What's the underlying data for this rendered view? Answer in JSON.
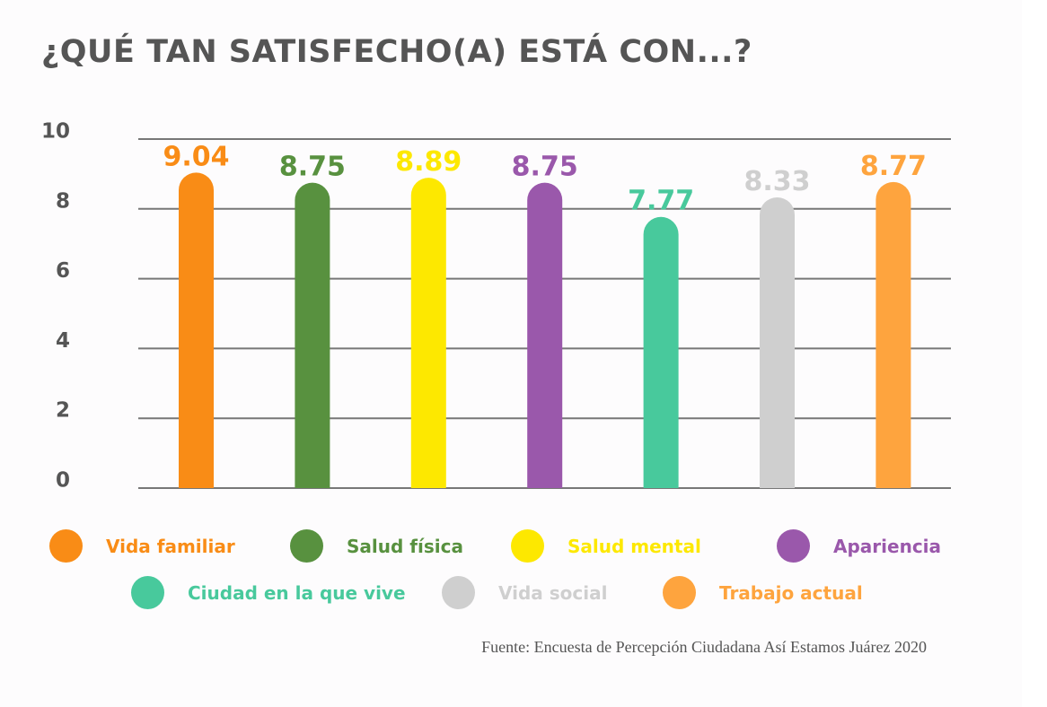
{
  "chart_data": {
    "type": "bar",
    "title": "¿QUÉ TAN SATISFECHO(A) ESTÁ CON...?",
    "xlabel": "",
    "ylabel": "",
    "ylim": [
      0,
      10
    ],
    "yticks": [
      0,
      2,
      4,
      6,
      8,
      10
    ],
    "grid": true,
    "legend_position": "bottom",
    "categories": [
      "Vida familiar",
      "Salud física",
      "Salud mental",
      "Apariencia",
      "Ciudad en la que vive",
      "Vida social",
      "Trabajo actual"
    ],
    "values": [
      9.04,
      8.75,
      8.89,
      8.75,
      7.77,
      8.33,
      8.77
    ],
    "value_labels": [
      "9.04",
      "8.75",
      "8.89",
      "8.75",
      "7.77",
      "8.33",
      "8.77"
    ],
    "colors": [
      "#f98c16",
      "#58913f",
      "#fde800",
      "#9a58ab",
      "#48c99c",
      "#cfcfcf",
      "#fea43e"
    ],
    "source": "Fuente: Encuesta de Percepción Ciudadana Así Estamos Juárez 2020"
  },
  "styles": {
    "title_color": "#555555",
    "grid_color": "#777777",
    "axis_label_color": "#555555"
  }
}
